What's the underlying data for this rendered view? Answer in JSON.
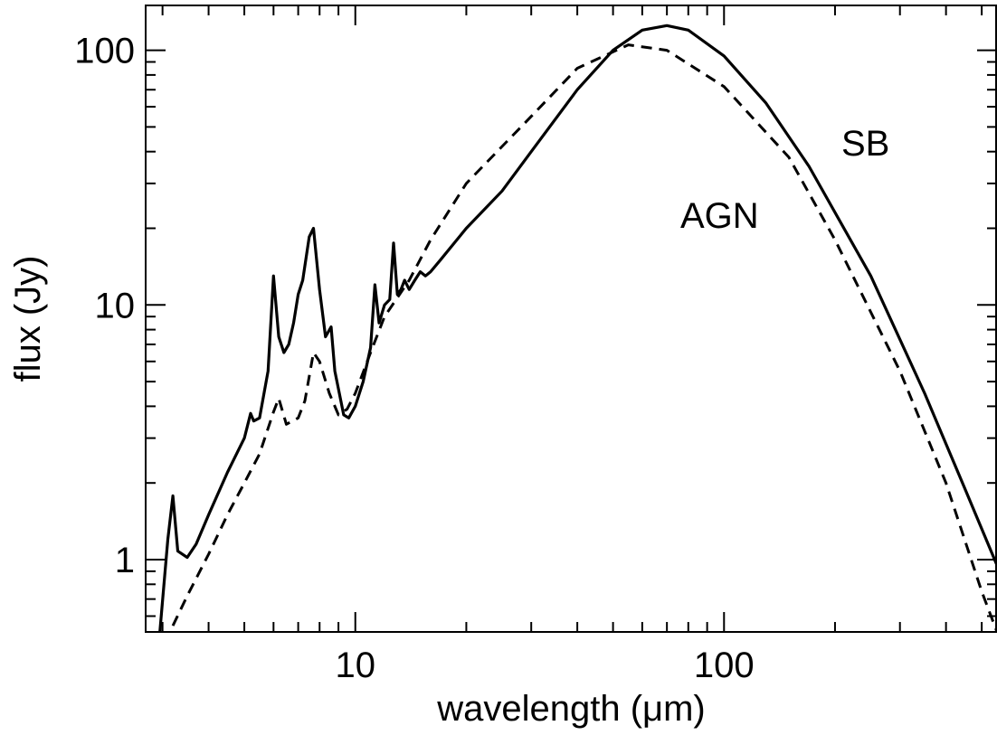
{
  "chart_data": {
    "type": "line",
    "title": "",
    "xlabel": "wavelength (μm)",
    "ylabel": "flux (Jy)",
    "x_scale": "log",
    "y_scale": "log",
    "xlim": [
      2.7,
      550
    ],
    "ylim": [
      0.52,
      150
    ],
    "x_ticks": [
      10,
      100
    ],
    "x_tick_labels": [
      "10",
      "100"
    ],
    "y_ticks": [
      1,
      10,
      100
    ],
    "y_tick_labels": [
      "1",
      "10",
      "100"
    ],
    "grid": false,
    "legend": "none",
    "annotations": [
      {
        "text": "SB",
        "series": "solid"
      },
      {
        "text": "AGN",
        "series": "dashed"
      }
    ],
    "series": [
      {
        "style": "solid",
        "color": "#000000",
        "x": [
          2.95,
          3.1,
          3.2,
          3.3,
          3.5,
          3.7,
          4.0,
          4.5,
          5.0,
          5.2,
          5.3,
          5.5,
          5.8,
          6.0,
          6.2,
          6.4,
          6.6,
          6.8,
          7.0,
          7.2,
          7.5,
          7.7,
          8.0,
          8.3,
          8.6,
          8.8,
          9.3,
          9.6,
          10.0,
          10.5,
          11.0,
          11.3,
          11.6,
          12.0,
          12.4,
          12.7,
          13.0,
          13.3,
          13.6,
          14.0,
          14.5,
          15.0,
          15.5,
          16.0,
          17.0,
          20.0,
          25.0,
          30.0,
          40.0,
          50.0,
          60.0,
          70.0,
          80.0,
          100.0,
          130.0,
          170.0,
          250.0,
          350.0,
          450.0,
          550.0
        ],
        "y": [
          0.52,
          1.2,
          1.78,
          1.08,
          1.02,
          1.15,
          1.5,
          2.2,
          3.0,
          3.75,
          3.5,
          3.6,
          5.5,
          13.0,
          7.5,
          6.5,
          7.0,
          8.5,
          11.0,
          12.5,
          18.5,
          20.0,
          11.5,
          7.5,
          8.2,
          5.5,
          3.7,
          3.6,
          4.0,
          5.0,
          6.8,
          12.0,
          8.5,
          10.0,
          10.5,
          17.5,
          11.0,
          11.5,
          12.5,
          11.5,
          12.5,
          13.5,
          13.0,
          13.5,
          15.0,
          20.0,
          28.0,
          40.0,
          70.0,
          100.0,
          120.0,
          125.0,
          120.0,
          95.0,
          62.0,
          35.0,
          13.0,
          4.5,
          1.9,
          0.95
        ]
      },
      {
        "style": "dashed",
        "color": "#000000",
        "x": [
          3.2,
          3.5,
          4.0,
          4.5,
          5.0,
          5.5,
          6.0,
          6.2,
          6.5,
          7.0,
          7.3,
          7.7,
          8.0,
          8.5,
          9.0,
          9.5,
          10.0,
          11.0,
          12.0,
          14.0,
          16.0,
          20.0,
          30.0,
          40.0,
          55.0,
          70.0,
          100.0,
          150.0,
          200.0,
          300.0,
          400.0,
          500.0,
          550.0
        ],
        "y": [
          0.55,
          0.72,
          1.05,
          1.5,
          2.0,
          2.6,
          3.8,
          4.3,
          3.4,
          3.6,
          4.2,
          6.5,
          6.0,
          4.5,
          3.7,
          3.9,
          4.5,
          6.5,
          9.0,
          12.5,
          18.0,
          30.0,
          55.0,
          85.0,
          105.0,
          100.0,
          72.0,
          38.0,
          18.0,
          5.5,
          2.0,
          0.75,
          0.52
        ]
      }
    ]
  }
}
